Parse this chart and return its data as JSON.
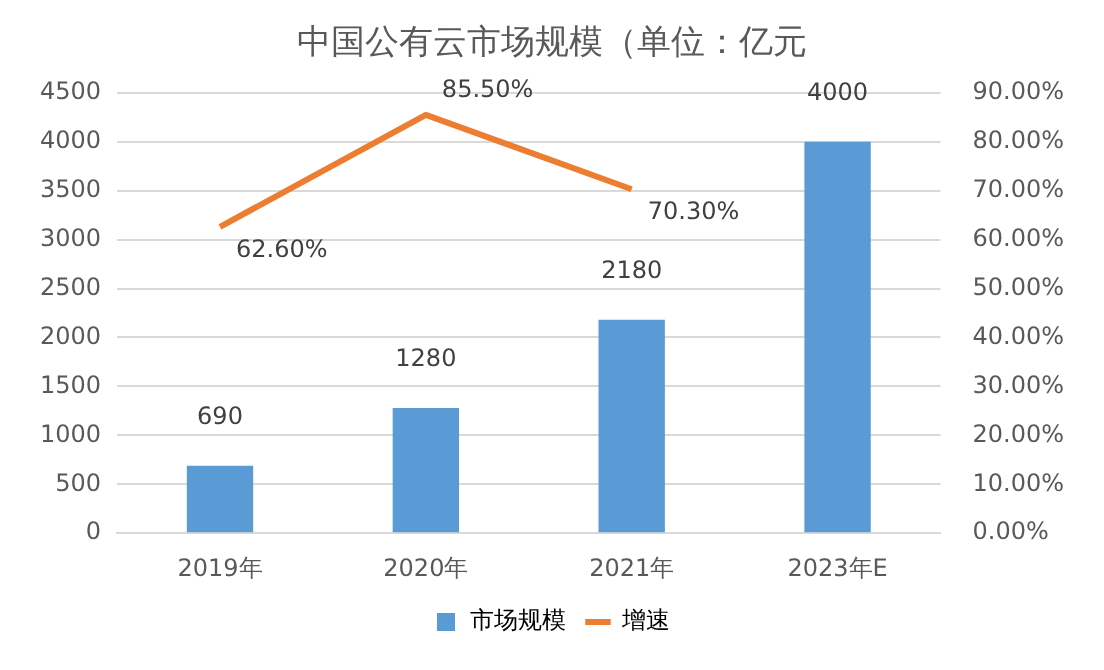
{
  "chart_data": {
    "type": "bar",
    "title": "中国公有云市场规模（单位：亿元",
    "categories": [
      "2019年",
      "2020年",
      "2021年",
      "2023年E"
    ],
    "series": [
      {
        "name": "市场规模",
        "color": "#5b9bd5",
        "values": [
          690,
          1280,
          2180,
          4000
        ],
        "value_labels": [
          "690",
          "1280",
          "2180",
          "4000"
        ]
      },
      {
        "name": "增速",
        "type": "line",
        "axis": "y2",
        "color": "#ed7d31",
        "values": [
          62.6,
          85.5,
          70.3,
          null
        ],
        "value_labels": [
          "62.60%",
          "85.50%",
          "70.30%",
          null
        ]
      }
    ],
    "ylim": [
      0,
      4500
    ],
    "yticks": [
      0,
      500,
      1000,
      1500,
      2000,
      2500,
      3000,
      3500,
      4000,
      4500
    ],
    "y2lim": [
      0,
      90
    ],
    "y2ticks": [
      {
        "value": 0,
        "label": "0.00%"
      },
      {
        "value": 10,
        "label": "10.00%"
      },
      {
        "value": 20,
        "label": "20.00%"
      },
      {
        "value": 30,
        "label": "30.00%"
      },
      {
        "value": 40,
        "label": "40.00%"
      },
      {
        "value": 50,
        "label": "50.00%"
      },
      {
        "value": 60,
        "label": "60.00%"
      },
      {
        "value": 70,
        "label": "70.00%"
      },
      {
        "value": 80,
        "label": "80.00%"
      },
      {
        "value": 90,
        "label": "90.00%"
      }
    ],
    "grid": "y",
    "legend": "bottom",
    "marker": "none",
    "line_style": "solid"
  }
}
